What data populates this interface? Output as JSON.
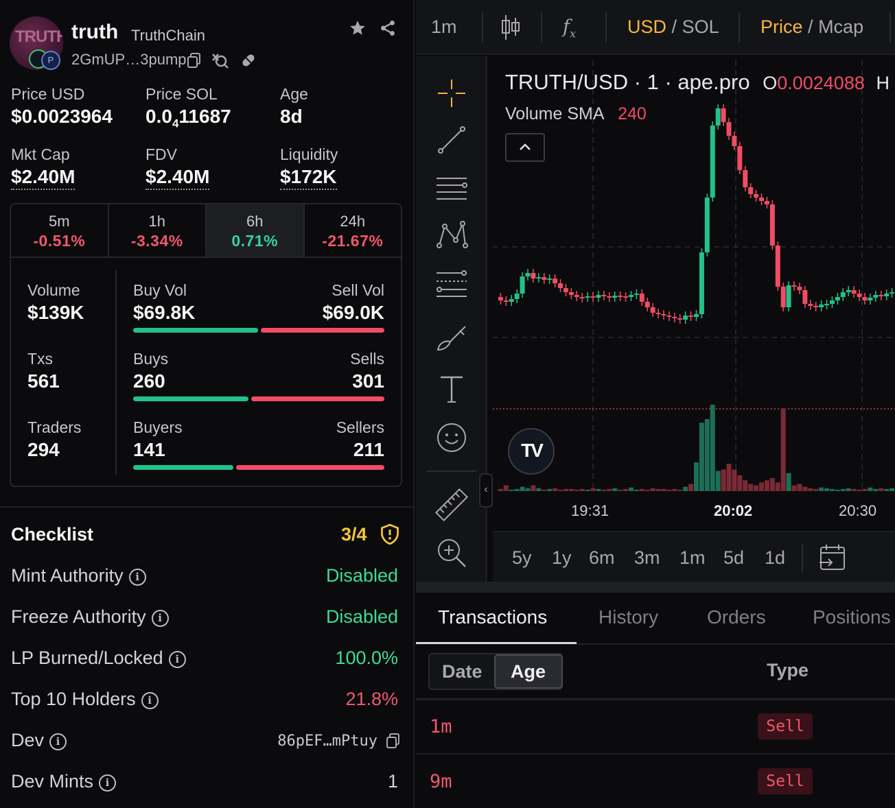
{
  "token": {
    "avatar_text": "TRUTH",
    "name": "truth",
    "chain_name": "TruthChain",
    "address": "2GmUP…3pump"
  },
  "stats": {
    "price_usd_label": "Price USD",
    "price_usd": "$0.0023964",
    "price_sol_label": "Price SOL",
    "price_sol_prefix": "0.0",
    "price_sol_sub": "4",
    "price_sol_rest": "11687",
    "age_label": "Age",
    "age": "8d",
    "mkt_cap_label": "Mkt Cap",
    "mkt_cap": "$2.40M",
    "fdv_label": "FDV",
    "fdv": "$2.40M",
    "liquidity_label": "Liquidity",
    "liquidity": "$172K"
  },
  "timeframes": [
    {
      "name": "5m",
      "change": "-0.51%"
    },
    {
      "name": "1h",
      "change": "-3.34%"
    },
    {
      "name": "6h",
      "change": "0.71%"
    },
    {
      "name": "24h",
      "change": "-21.67%"
    }
  ],
  "metrics": {
    "volume_label": "Volume",
    "volume": "$139K",
    "buy_vol_label": "Buy Vol",
    "buy_vol": "$69.8K",
    "sell_vol_label": "Sell Vol",
    "sell_vol": "$69.0K",
    "txs_label": "Txs",
    "txs": "561",
    "buys_label": "Buys",
    "buys": "260",
    "sells_label": "Sells",
    "sells": "301",
    "traders_label": "Traders",
    "traders": "294",
    "buyers_label": "Buyers",
    "buyers": "141",
    "sellers_label": "Sellers",
    "sellers": "211"
  },
  "checklist": {
    "title": "Checklist",
    "score": "3/4",
    "items": [
      {
        "label": "Mint Authority",
        "value": "Disabled"
      },
      {
        "label": "Freeze Authority",
        "value": "Disabled"
      },
      {
        "label": "LP Burned/Locked",
        "value": "100.0%"
      },
      {
        "label": "Top 10 Holders",
        "value": "21.8%"
      },
      {
        "label": "Dev",
        "value": "86pEF…mPtuy"
      },
      {
        "label": "Dev Mints",
        "value": "1"
      }
    ]
  },
  "chart_toolbar": {
    "interval": "1m",
    "currency_a": "USD",
    "currency_b": "SOL",
    "metric_a": "Price",
    "metric_b": "Mcap",
    "slash": "/"
  },
  "chart": {
    "title_prefix": "TRUTH/USD · 1 · ape.pro",
    "open_label": "O",
    "open_value": "0.0024088",
    "high_label": "H",
    "volume_label": "Volume SMA",
    "volume_value": "240",
    "x_labels": [
      "19:31",
      "20:02",
      "20:30"
    ]
  },
  "ranges": [
    "5y",
    "1y",
    "6m",
    "3m",
    "1m",
    "5d",
    "1d"
  ],
  "tabs": [
    "Transactions",
    "History",
    "Orders",
    "Positions"
  ],
  "tx_table": {
    "seg_date": "Date",
    "seg_age": "Age",
    "col_type": "Type",
    "rows": [
      {
        "age": "1m",
        "type": "Sell"
      },
      {
        "age": "9m",
        "type": "Sell"
      }
    ]
  },
  "colors": {
    "up": "#22c28a",
    "down": "#f04c64",
    "accent": "#f5b83d"
  }
}
